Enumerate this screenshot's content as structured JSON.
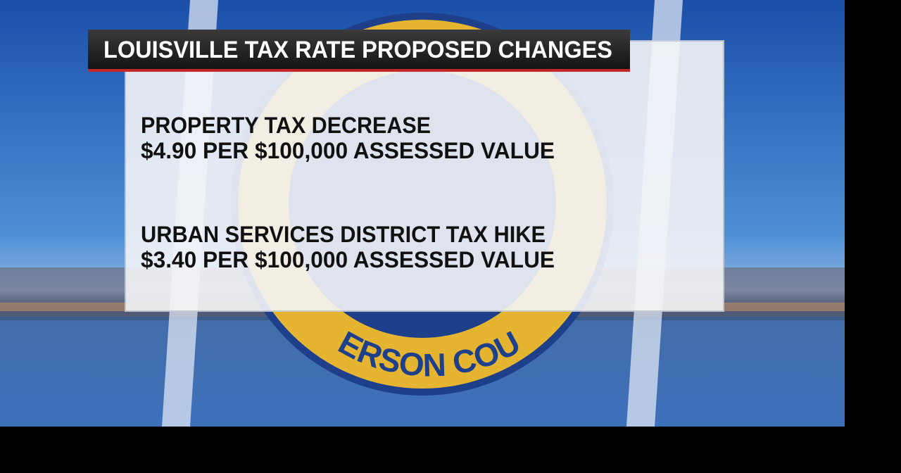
{
  "title": "LOUISVILLE TAX RATE PROPOSED CHANGES",
  "items": [
    {
      "heading": "PROPERTY TAX DECREASE",
      "detail": "$4.90 PER $100,000 ASSESSED VALUE"
    },
    {
      "heading": "URBAN SERVICES DISTRICT TAX HIKE",
      "detail": "$3.40 PER $100,000 ASSESSED VALUE"
    }
  ],
  "seal_text": "ERSON COU"
}
